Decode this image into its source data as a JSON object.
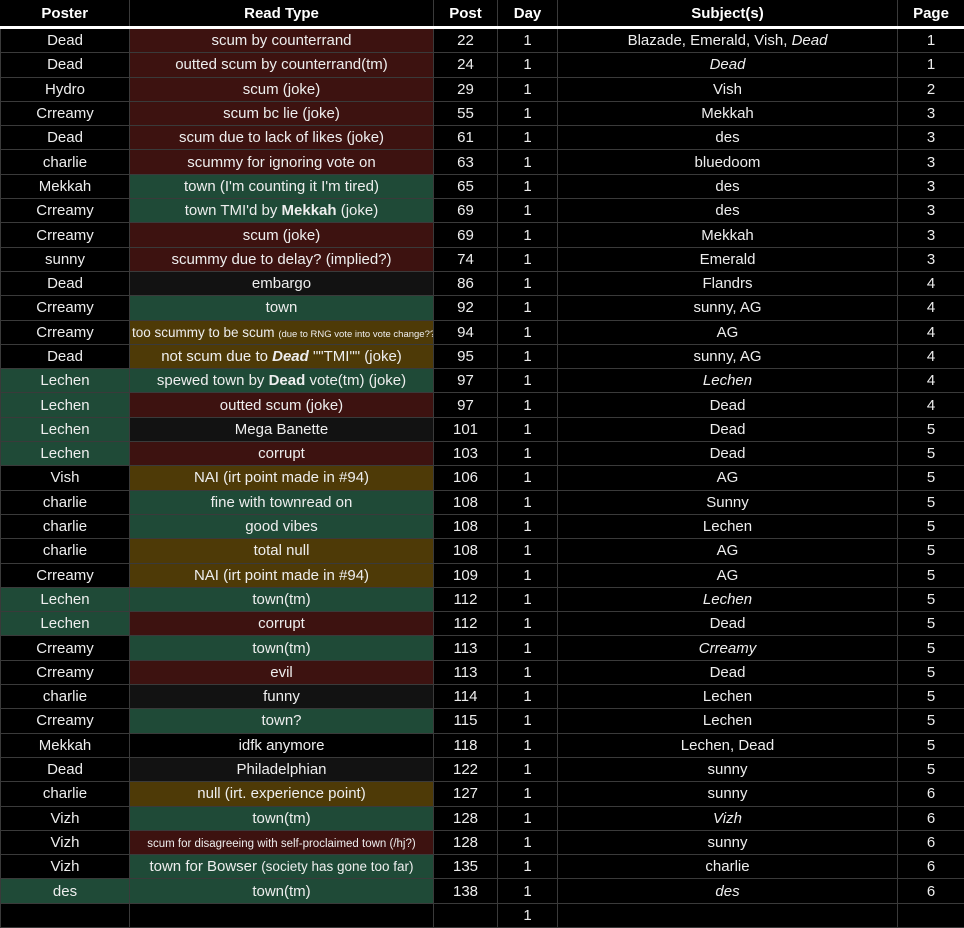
{
  "colors": {
    "red": "#3d1210",
    "green": "#1f4a37",
    "yellow": "#4e3a07",
    "gray": "#121212"
  },
  "headers": [
    "Poster",
    "Read Type",
    "Post",
    "Day",
    "Subject(s)",
    "Page"
  ],
  "rows": [
    {
      "poster": "Dead",
      "read": [
        {
          "t": "scum by counterrand"
        }
      ],
      "rc": "red",
      "post": "22",
      "day": "1",
      "subject": [
        {
          "t": "Blazade, Emerald, Vish, "
        },
        {
          "t": "Dead",
          "i": 1
        }
      ],
      "page": "1"
    },
    {
      "poster": "Dead",
      "read": [
        {
          "t": "outted scum by counterrand(tm)"
        }
      ],
      "rc": "red",
      "post": "24",
      "day": "1",
      "subject": [
        {
          "t": "Dead",
          "i": 1
        }
      ],
      "page": "1"
    },
    {
      "poster": "Hydro",
      "read": [
        {
          "t": "scum (joke)"
        }
      ],
      "rc": "red",
      "post": "29",
      "day": "1",
      "subject": [
        {
          "t": "Vish"
        }
      ],
      "page": "2"
    },
    {
      "poster": "Crreamy",
      "read": [
        {
          "t": "scum bc lie (joke)"
        }
      ],
      "rc": "red",
      "post": "55",
      "day": "1",
      "subject": [
        {
          "t": "Mekkah"
        }
      ],
      "page": "3"
    },
    {
      "poster": "Dead",
      "read": [
        {
          "t": "scum due to lack of likes (joke)"
        }
      ],
      "rc": "red",
      "post": "61",
      "day": "1",
      "subject": [
        {
          "t": "des"
        }
      ],
      "page": "3"
    },
    {
      "poster": "charlie",
      "read": [
        {
          "t": "scummy for ignoring vote on"
        }
      ],
      "rc": "red",
      "post": "63",
      "day": "1",
      "subject": [
        {
          "t": "bluedoom"
        }
      ],
      "page": "3"
    },
    {
      "poster": "Mekkah",
      "read": [
        {
          "t": "town (I'm counting it I'm tired)"
        }
      ],
      "rc": "green",
      "post": "65",
      "day": "1",
      "subject": [
        {
          "t": "des"
        }
      ],
      "page": "3"
    },
    {
      "poster": "Crreamy",
      "read": [
        {
          "t": "town TMI'd by "
        },
        {
          "t": "Mekkah",
          "b": 1
        },
        {
          "t": " (joke)"
        }
      ],
      "rc": "green",
      "post": "69",
      "day": "1",
      "subject": [
        {
          "t": "des"
        }
      ],
      "page": "3"
    },
    {
      "poster": "Crreamy",
      "read": [
        {
          "t": "scum (joke)"
        }
      ],
      "rc": "red",
      "post": "69",
      "day": "1",
      "subject": [
        {
          "t": "Mekkah"
        }
      ],
      "page": "3"
    },
    {
      "poster": "sunny",
      "read": [
        {
          "t": "scummy due to delay? (implied?)"
        }
      ],
      "rc": "red",
      "post": "74",
      "day": "1",
      "subject": [
        {
          "t": "Emerald"
        }
      ],
      "page": "3"
    },
    {
      "poster": "Dead",
      "read": [
        {
          "t": "embargo"
        }
      ],
      "rc": "gray",
      "post": "86",
      "day": "1",
      "subject": [
        {
          "t": "Flandrs"
        }
      ],
      "page": "4"
    },
    {
      "poster": "Crreamy",
      "read": [
        {
          "t": "town"
        }
      ],
      "rc": "green",
      "post": "92",
      "day": "1",
      "subject": [
        {
          "t": "sunny, AG"
        }
      ],
      "page": "4"
    },
    {
      "poster": "Crreamy",
      "read": [
        {
          "t": "too scummy to be scum ",
          "s": "md"
        },
        {
          "t": "(due to RNG vote into vote change??)",
          "s": "sm"
        }
      ],
      "rc": "yellow",
      "post": "94",
      "day": "1",
      "subject": [
        {
          "t": "AG"
        }
      ],
      "page": "4"
    },
    {
      "poster": "Dead",
      "read": [
        {
          "t": "not scum due to "
        },
        {
          "t": "Dead",
          "b": 1,
          "i": 1
        },
        {
          "t": " \"\"TMI\"\" (joke)"
        }
      ],
      "rc": "yellow",
      "post": "95",
      "day": "1",
      "subject": [
        {
          "t": "sunny, AG"
        }
      ],
      "page": "4"
    },
    {
      "poster": "Lechen",
      "pc": "green",
      "read": [
        {
          "t": "spewed town by "
        },
        {
          "t": "Dead",
          "b": 1
        },
        {
          "t": " vote(tm) (joke)"
        }
      ],
      "rc": "green",
      "post": "97",
      "day": "1",
      "subject": [
        {
          "t": "Lechen",
          "i": 1
        }
      ],
      "page": "4"
    },
    {
      "poster": "Lechen",
      "pc": "green",
      "read": [
        {
          "t": "outted scum (joke)"
        }
      ],
      "rc": "red",
      "post": "97",
      "day": "1",
      "subject": [
        {
          "t": "Dead"
        }
      ],
      "page": "4"
    },
    {
      "poster": "Lechen",
      "pc": "green",
      "read": [
        {
          "t": "Mega Banette"
        }
      ],
      "rc": "gray",
      "post": "101",
      "day": "1",
      "subject": [
        {
          "t": "Dead"
        }
      ],
      "page": "5"
    },
    {
      "poster": "Lechen",
      "pc": "green",
      "read": [
        {
          "t": "corrupt"
        }
      ],
      "rc": "red",
      "post": "103",
      "day": "1",
      "subject": [
        {
          "t": "Dead"
        }
      ],
      "page": "5"
    },
    {
      "poster": "Vish",
      "read": [
        {
          "t": "NAI (irt point made in #94)"
        }
      ],
      "rc": "yellow",
      "post": "106",
      "day": "1",
      "subject": [
        {
          "t": "AG"
        }
      ],
      "page": "5"
    },
    {
      "poster": "charlie",
      "read": [
        {
          "t": "fine with townread on"
        }
      ],
      "rc": "green",
      "post": "108",
      "day": "1",
      "subject": [
        {
          "t": "Sunny"
        }
      ],
      "page": "5"
    },
    {
      "poster": "charlie",
      "read": [
        {
          "t": "good vibes"
        }
      ],
      "rc": "green",
      "post": "108",
      "day": "1",
      "subject": [
        {
          "t": "Lechen"
        }
      ],
      "page": "5"
    },
    {
      "poster": "charlie",
      "read": [
        {
          "t": "total null"
        }
      ],
      "rc": "yellow",
      "post": "108",
      "day": "1",
      "subject": [
        {
          "t": "AG"
        }
      ],
      "page": "5"
    },
    {
      "poster": "Crreamy",
      "read": [
        {
          "t": "NAI (irt point made in #94)"
        }
      ],
      "rc": "yellow",
      "post": "109",
      "day": "1",
      "subject": [
        {
          "t": "AG"
        }
      ],
      "page": "5"
    },
    {
      "poster": "Lechen",
      "pc": "green",
      "read": [
        {
          "t": "town(tm)"
        }
      ],
      "rc": "green",
      "post": "112",
      "day": "1",
      "subject": [
        {
          "t": "Lechen",
          "i": 1
        }
      ],
      "page": "5"
    },
    {
      "poster": "Lechen",
      "pc": "green",
      "read": [
        {
          "t": "corrupt"
        }
      ],
      "rc": "red",
      "post": "112",
      "day": "1",
      "subject": [
        {
          "t": "Dead"
        }
      ],
      "page": "5"
    },
    {
      "poster": "Crreamy",
      "read": [
        {
          "t": "town(tm)"
        }
      ],
      "rc": "green",
      "post": "113",
      "day": "1",
      "subject": [
        {
          "t": "Crreamy",
          "i": 1
        }
      ],
      "page": "5"
    },
    {
      "poster": "Crreamy",
      "read": [
        {
          "t": "evil"
        }
      ],
      "rc": "red",
      "post": "113",
      "day": "1",
      "subject": [
        {
          "t": "Dead"
        }
      ],
      "page": "5"
    },
    {
      "poster": "charlie",
      "read": [
        {
          "t": "funny"
        }
      ],
      "rc": "gray",
      "post": "114",
      "day": "1",
      "subject": [
        {
          "t": "Lechen"
        }
      ],
      "page": "5"
    },
    {
      "poster": "Crreamy",
      "read": [
        {
          "t": "town?"
        }
      ],
      "rc": "green",
      "post": "115",
      "day": "1",
      "subject": [
        {
          "t": "Lechen"
        }
      ],
      "page": "5"
    },
    {
      "poster": "Mekkah",
      "read": [
        {
          "t": "idfk anymore"
        }
      ],
      "rc": "black",
      "post": "118",
      "day": "1",
      "subject": [
        {
          "t": "Lechen, Dead"
        }
      ],
      "page": "5"
    },
    {
      "poster": "Dead",
      "read": [
        {
          "t": "Philadelphian"
        }
      ],
      "rc": "gray",
      "post": "122",
      "day": "1",
      "subject": [
        {
          "t": "sunny"
        }
      ],
      "page": "5"
    },
    {
      "poster": "charlie",
      "read": [
        {
          "t": "null (irt. experience point)"
        }
      ],
      "rc": "yellow",
      "post": "127",
      "day": "1",
      "subject": [
        {
          "t": "sunny"
        }
      ],
      "page": "6"
    },
    {
      "poster": "Vizh",
      "read": [
        {
          "t": "town(tm)"
        }
      ],
      "rc": "green",
      "post": "128",
      "day": "1",
      "subject": [
        {
          "t": "Vizh",
          "i": 1
        }
      ],
      "page": "6"
    },
    {
      "poster": "Vizh",
      "read": [
        {
          "t": "scum for disagreeing with self-proclaimed town (/hj?)",
          "s": "sm2"
        }
      ],
      "rc": "red",
      "post": "128",
      "day": "1",
      "subject": [
        {
          "t": "sunny"
        }
      ],
      "page": "6"
    },
    {
      "poster": "Vizh",
      "read": [
        {
          "t": "town for Bowser "
        },
        {
          "t": "(society has gone too far)",
          "s": "md"
        }
      ],
      "rc": "green",
      "post": "135",
      "day": "1",
      "subject": [
        {
          "t": "charlie"
        }
      ],
      "page": "6"
    },
    {
      "poster": "des",
      "pc": "green",
      "read": [
        {
          "t": "town(tm)"
        }
      ],
      "rc": "green",
      "post": "138",
      "day": "1",
      "subject": [
        {
          "t": "des",
          "i": 1
        }
      ],
      "page": "6"
    },
    {
      "poster": "",
      "read": [],
      "rc": "black",
      "post": "",
      "day": "1",
      "subject": [],
      "page": ""
    }
  ]
}
